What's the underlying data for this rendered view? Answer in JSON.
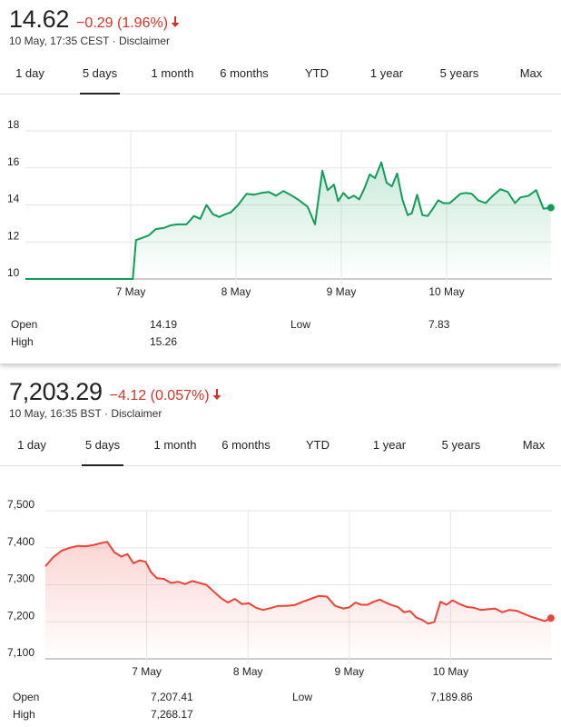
{
  "panels": [
    {
      "price": "14.62",
      "change": "−0.29 (1.96%)",
      "time": "10 May, 17:35 CEST",
      "separator": "·",
      "disclaimer": "Disclaimer",
      "tabs": [
        "1 day",
        "5 days",
        "1 month",
        "6 months",
        "YTD",
        "1 year",
        "5 years",
        "Max"
      ],
      "active_tab": "5 days",
      "stats": {
        "open_label": "Open",
        "open": "14.19",
        "high_label": "High",
        "high": "15.26",
        "low_label": "Low",
        "low": "7.83"
      }
    },
    {
      "price": "7,203.29",
      "change": "−4.12 (0.057%)",
      "time": "10 May, 16:35 BST",
      "separator": "·",
      "disclaimer": "Disclaimer",
      "tabs": [
        "1 day",
        "5 days",
        "1 month",
        "6 months",
        "YTD",
        "1 year",
        "5 years",
        "Max"
      ],
      "active_tab": "5 days",
      "stats": {
        "open_label": "Open",
        "open": "7,207.41",
        "high_label": "High",
        "high": "7,268.17",
        "low_label": "Low",
        "low": "7,189.86"
      }
    }
  ],
  "colors": {
    "negative": "#d93025",
    "up_line": "#0f9d58",
    "down_line": "#ea4335",
    "grid": "#e6e6e6"
  },
  "chart_data": [
    {
      "type": "area",
      "title": "",
      "xlabel": "",
      "ylabel": "",
      "xlim": [
        0,
        5
      ],
      "ylim": [
        10,
        18
      ],
      "yticks": [
        10,
        12,
        14,
        16,
        18
      ],
      "ytick_labels": [
        "10",
        "12",
        "14",
        "16",
        "18"
      ],
      "xticks": [
        1,
        2,
        3,
        4
      ],
      "xtick_labels": [
        "7 May",
        "8 May",
        "9 May",
        "10 May"
      ],
      "grid": true,
      "color": "#0f9d58",
      "x": [
        0,
        1.02,
        1.05,
        1.1,
        1.17,
        1.24,
        1.31,
        1.38,
        1.45,
        1.53,
        1.6,
        1.66,
        1.72,
        1.78,
        1.84,
        1.9,
        1.95,
        2.02,
        2.1,
        2.17,
        2.24,
        2.31,
        2.38,
        2.45,
        2.53,
        2.6,
        2.68,
        2.75,
        2.82,
        2.87,
        2.93,
        2.97,
        3.02,
        3.07,
        3.12,
        3.17,
        3.22,
        3.27,
        3.32,
        3.38,
        3.43,
        3.48,
        3.53,
        3.58,
        3.63,
        3.67,
        3.72,
        3.77,
        3.82,
        3.87,
        3.92,
        3.97,
        4.03,
        4.08,
        4.13,
        4.18,
        4.24,
        4.3,
        4.37,
        4.44,
        4.51,
        4.58,
        4.65,
        4.7,
        4.78,
        4.85,
        4.92,
        4.99
      ],
      "y": [
        10.0,
        10.0,
        12.1,
        12.2,
        12.35,
        12.7,
        12.75,
        12.9,
        12.95,
        12.95,
        13.4,
        13.25,
        14.0,
        13.5,
        13.35,
        13.5,
        13.6,
        14.0,
        14.6,
        14.55,
        14.65,
        14.7,
        14.5,
        14.75,
        14.5,
        14.25,
        13.9,
        12.95,
        15.85,
        14.8,
        15.1,
        14.2,
        14.65,
        14.35,
        14.5,
        14.3,
        14.9,
        15.65,
        15.45,
        16.3,
        15.2,
        15.0,
        15.7,
        14.3,
        13.45,
        13.55,
        14.55,
        13.45,
        13.4,
        13.8,
        14.25,
        14.1,
        14.1,
        14.35,
        14.6,
        14.65,
        14.6,
        14.25,
        14.1,
        14.5,
        14.85,
        14.7,
        14.1,
        14.4,
        14.5,
        14.8,
        13.8,
        13.85
      ]
    },
    {
      "type": "area",
      "title": "",
      "xlabel": "",
      "ylabel": "",
      "xlim": [
        0,
        5
      ],
      "ylim": [
        7100,
        7500
      ],
      "yticks": [
        7100,
        7200,
        7300,
        7400,
        7500
      ],
      "ytick_labels": [
        "7,100",
        "7,200",
        "7,300",
        "7,400",
        "7,500"
      ],
      "xticks": [
        1,
        2,
        3,
        4
      ],
      "xtick_labels": [
        "7 May",
        "8 May",
        "9 May",
        "10 May"
      ],
      "grid": true,
      "color": "#ea4335",
      "x": [
        0,
        0.08,
        0.16,
        0.24,
        0.32,
        0.4,
        0.47,
        0.54,
        0.61,
        0.68,
        0.75,
        0.81,
        0.87,
        0.93,
        0.99,
        1.04,
        1.1,
        1.17,
        1.24,
        1.31,
        1.38,
        1.45,
        1.52,
        1.59,
        1.66,
        1.73,
        1.8,
        1.87,
        1.94,
        2.01,
        2.08,
        2.15,
        2.22,
        2.3,
        2.38,
        2.46,
        2.54,
        2.62,
        2.7,
        2.78,
        2.86,
        2.94,
        3.0,
        3.06,
        3.12,
        3.18,
        3.24,
        3.3,
        3.36,
        3.42,
        3.48,
        3.54,
        3.6,
        3.66,
        3.72,
        3.78,
        3.84,
        3.9,
        3.96,
        4.02,
        4.09,
        4.16,
        4.23,
        4.3,
        4.37,
        4.44,
        4.51,
        4.58,
        4.65,
        4.72,
        4.79,
        4.86,
        4.93,
        4.99
      ],
      "y": [
        7350,
        7375,
        7392,
        7400,
        7405,
        7404,
        7407,
        7412,
        7416,
        7388,
        7376,
        7383,
        7358,
        7366,
        7362,
        7335,
        7318,
        7316,
        7305,
        7308,
        7302,
        7310,
        7305,
        7300,
        7282,
        7265,
        7252,
        7262,
        7248,
        7250,
        7238,
        7232,
        7237,
        7243,
        7243,
        7245,
        7254,
        7262,
        7270,
        7268,
        7243,
        7236,
        7239,
        7252,
        7246,
        7246,
        7254,
        7260,
        7252,
        7245,
        7240,
        7226,
        7229,
        7212,
        7205,
        7195,
        7200,
        7254,
        7246,
        7258,
        7248,
        7240,
        7238,
        7232,
        7234,
        7236,
        7226,
        7232,
        7230,
        7222,
        7214,
        7208,
        7202,
        7210
      ]
    }
  ]
}
